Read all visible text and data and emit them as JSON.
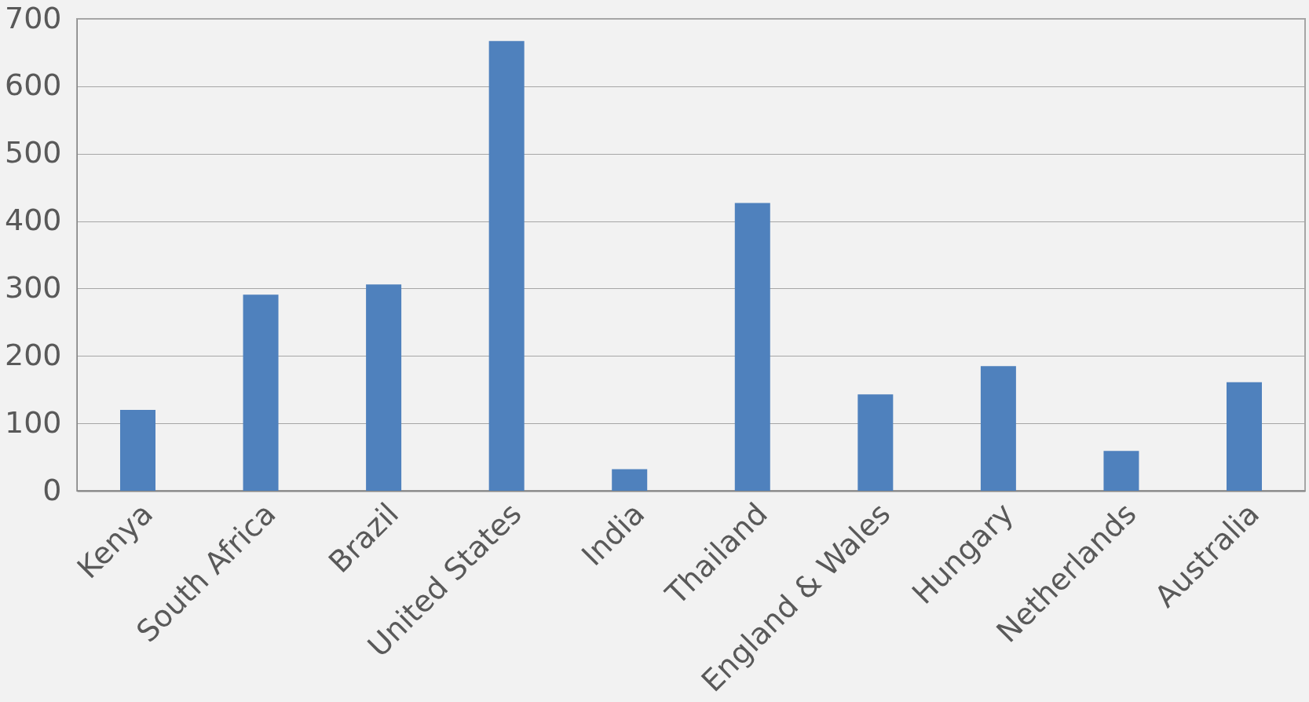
{
  "chart_data": {
    "type": "bar",
    "categories": [
      "Kenya",
      "South Africa",
      "Brazil",
      "United States",
      "India",
      "Thailand",
      "England & Wales",
      "Hungary",
      "Netherlands",
      "Australia"
    ],
    "values": [
      120,
      291,
      306,
      667,
      32,
      427,
      143,
      185,
      59,
      161
    ],
    "color": "#4f81bd",
    "ylim": [
      0,
      700
    ],
    "yticks": [
      0,
      100,
      200,
      300,
      400,
      500,
      600,
      700
    ],
    "grid": "y"
  }
}
